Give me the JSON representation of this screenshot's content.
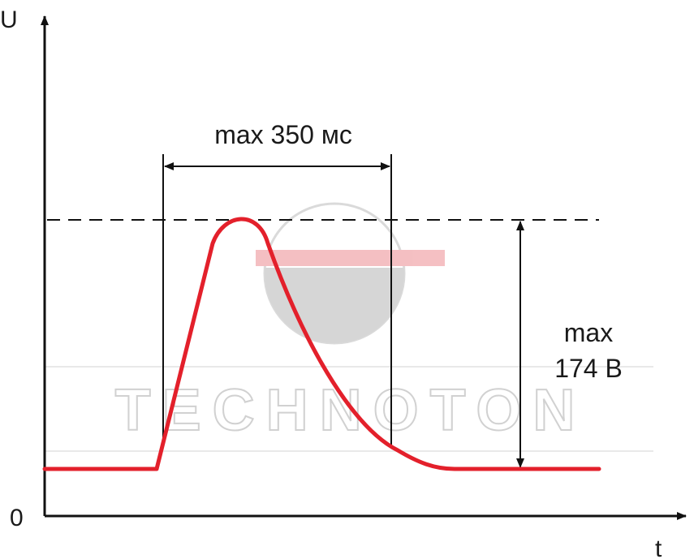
{
  "axes": {
    "y_label": "U",
    "x_label": "t",
    "origin_label": "0"
  },
  "annotations": {
    "duration_label": "max 350 мс",
    "voltage_label_line1": "max",
    "voltage_label_line2": "174 В"
  },
  "watermark": {
    "text": "TECHNOTON"
  },
  "colors": {
    "curve": "#e3202b",
    "axis": "#111111",
    "watermark_gray": "#c9c9c9",
    "watermark_red": "#f3b5b8"
  }
}
